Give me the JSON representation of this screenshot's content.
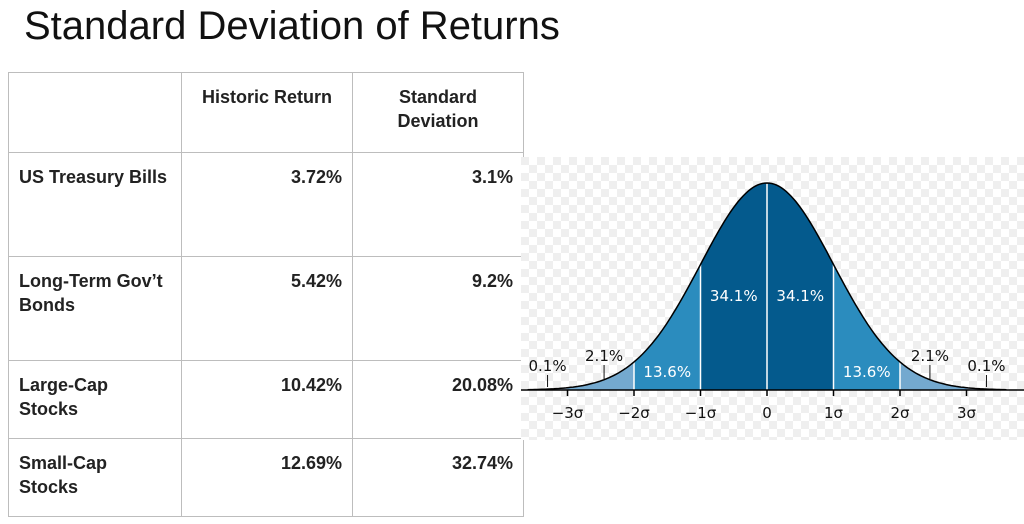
{
  "title": "Standard Deviation of Returns",
  "table": {
    "headers": [
      "",
      "Historic Return",
      "Standard Deviation"
    ],
    "rows": [
      {
        "name": "US Treasury Bills",
        "return": "3.72%",
        "sd": "3.1%"
      },
      {
        "name": "Long-Term Gov’t Bonds",
        "return": "5.42%",
        "sd": "9.2%"
      },
      {
        "name": "Large-Cap Stocks",
        "return": "10.42%",
        "sd": "20.08%"
      },
      {
        "name": "Small-Cap Stocks",
        "return": "12.69%",
        "sd": "32.74%"
      }
    ]
  },
  "chart_data": {
    "type": "area",
    "distribution": "normal",
    "xlim": [
      -3.6,
      3.6
    ],
    "x_ticks": [
      {
        "value": -3,
        "label": "−3σ"
      },
      {
        "value": -2,
        "label": "−2σ"
      },
      {
        "value": -1,
        "label": "−1σ"
      },
      {
        "value": 0,
        "label": "0"
      },
      {
        "value": 1,
        "label": "1σ"
      },
      {
        "value": 2,
        "label": "2σ"
      },
      {
        "value": 3,
        "label": "3σ"
      }
    ],
    "bands": [
      {
        "from": -1,
        "to": 0,
        "percent": "34.1%",
        "color": "#045a8d"
      },
      {
        "from": 0,
        "to": 1,
        "percent": "34.1%",
        "color": "#045a8d"
      },
      {
        "from": -2,
        "to": -1,
        "percent": "13.6%",
        "color": "#2b8cbe"
      },
      {
        "from": 1,
        "to": 2,
        "percent": "13.6%",
        "color": "#2b8cbe"
      },
      {
        "from": -3,
        "to": -2,
        "percent": "2.1%",
        "color": "#74a9cf"
      },
      {
        "from": 2,
        "to": 3,
        "percent": "2.1%",
        "color": "#74a9cf"
      },
      {
        "from": -3.6,
        "to": -3,
        "percent": "0.1%",
        "color": "#a6bddb"
      },
      {
        "from": 3,
        "to": 3.6,
        "percent": "0.1%",
        "color": "#a6bddb"
      }
    ],
    "grid": false,
    "background": "checkerboard"
  }
}
